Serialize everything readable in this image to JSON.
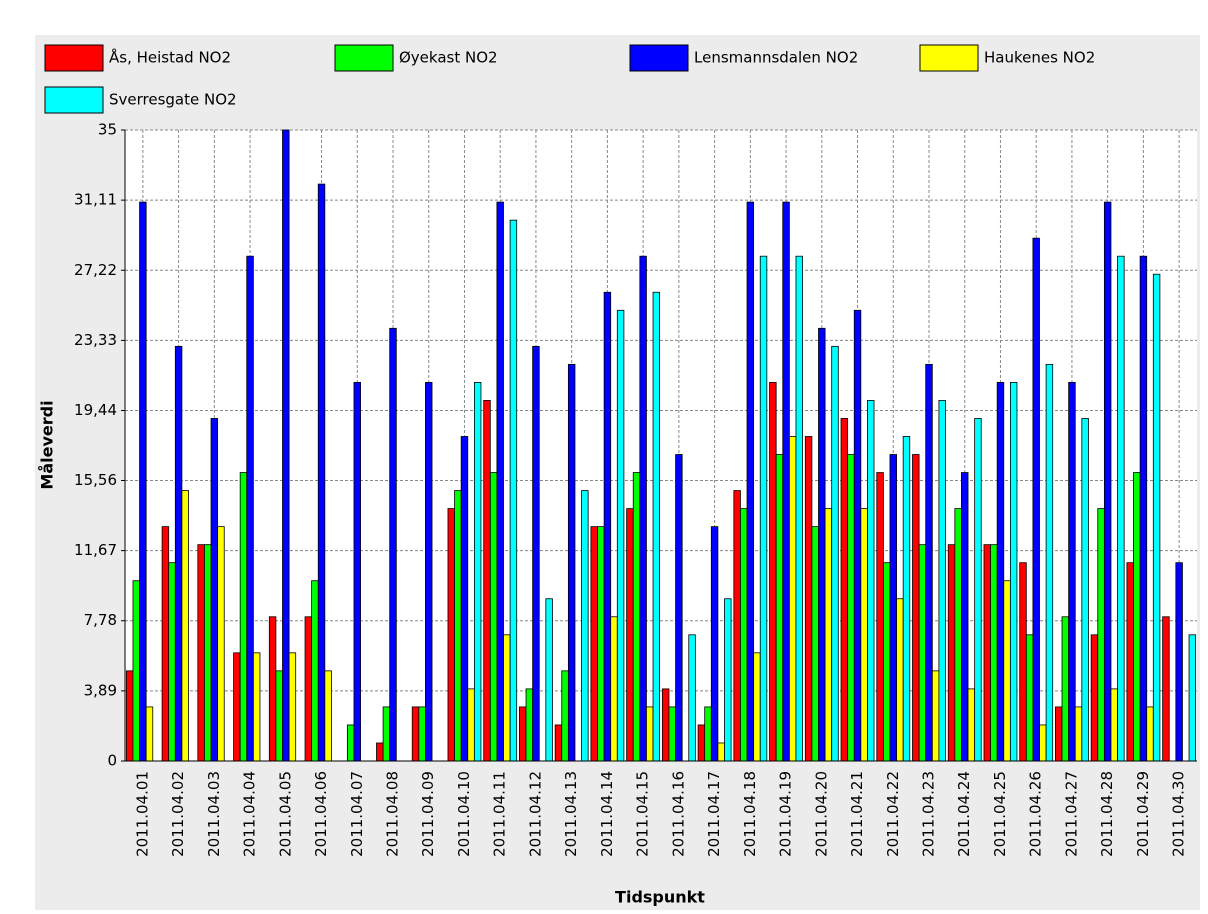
{
  "chart_data": {
    "type": "bar",
    "x_label": "Tidspunkt",
    "y_label": "Måleverdi",
    "legend": "top",
    "grid": true,
    "categories": [
      "2011.04.01",
      "2011.04.02",
      "2011.04.03",
      "2011.04.04",
      "2011.04.05",
      "2011.04.06",
      "2011.04.07",
      "2011.04.08",
      "2011.04.09",
      "2011.04.10",
      "2011.04.11",
      "2011.04.12",
      "2011.04.13",
      "2011.04.14",
      "2011.04.15",
      "2011.04.16",
      "2011.04.17",
      "2011.04.18",
      "2011.04.19",
      "2011.04.20",
      "2011.04.21",
      "2011.04.22",
      "2011.04.23",
      "2011.04.24",
      "2011.04.25",
      "2011.04.26",
      "2011.04.27",
      "2011.04.28",
      "2011.04.29",
      "2011.04.30"
    ],
    "series": [
      {
        "name": "Ås, Heistad NO2",
        "color": "#ff0000",
        "values": [
          5,
          13,
          12,
          6,
          8,
          8,
          0,
          1,
          3,
          14,
          20,
          3,
          2,
          13,
          14,
          4,
          2,
          15,
          21,
          18,
          19,
          16,
          17,
          12,
          12,
          11,
          3,
          7,
          11,
          8
        ]
      },
      {
        "name": "Øyekast NO2",
        "color": "#00ff00",
        "values": [
          10,
          11,
          12,
          16,
          5,
          10,
          2,
          3,
          3,
          15,
          16,
          4,
          5,
          13,
          16,
          3,
          3,
          14,
          17,
          13,
          17,
          11,
          12,
          14,
          12,
          7,
          8,
          14,
          16,
          0
        ]
      },
      {
        "name": "Lensmannsdalen NO2",
        "color": "#0000ff",
        "values": [
          31,
          23,
          19,
          28,
          35,
          32,
          21,
          24,
          21,
          18,
          31,
          23,
          22,
          26,
          28,
          17,
          13,
          31,
          31,
          24,
          25,
          17,
          22,
          16,
          21,
          29,
          21,
          31,
          28,
          11
        ]
      },
      {
        "name": "Haukenes NO2",
        "color": "#ffff00",
        "values": [
          3,
          15,
          13,
          6,
          6,
          5,
          0,
          0,
          0,
          4,
          7,
          0,
          0,
          8,
          3,
          0,
          1,
          6,
          18,
          14,
          14,
          9,
          5,
          4,
          10,
          2,
          3,
          4,
          3,
          0
        ]
      },
      {
        "name": "Sverresgate NO2",
        "color": "#00ffff",
        "values": [
          0,
          0,
          0,
          0,
          0,
          0,
          0,
          0,
          0,
          21,
          30,
          9,
          15,
          25,
          26,
          7,
          9,
          28,
          28,
          23,
          20,
          18,
          20,
          19,
          21,
          22,
          19,
          28,
          27,
          7
        ]
      }
    ],
    "ylim": [
      0,
      35
    ],
    "yticks": [
      0,
      {
        "value": 3.89,
        "label": "3,89"
      },
      {
        "value": 7.78,
        "label": "7,78"
      },
      {
        "value": 11.67,
        "label": "11,67"
      },
      {
        "value": 15.56,
        "label": "15,56"
      },
      {
        "value": 19.44,
        "label": "19,44"
      },
      {
        "value": 23.33,
        "label": "23,33"
      },
      {
        "value": 27.22,
        "label": "27,22"
      },
      {
        "value": 31.11,
        "label": "31,11"
      },
      35
    ]
  }
}
